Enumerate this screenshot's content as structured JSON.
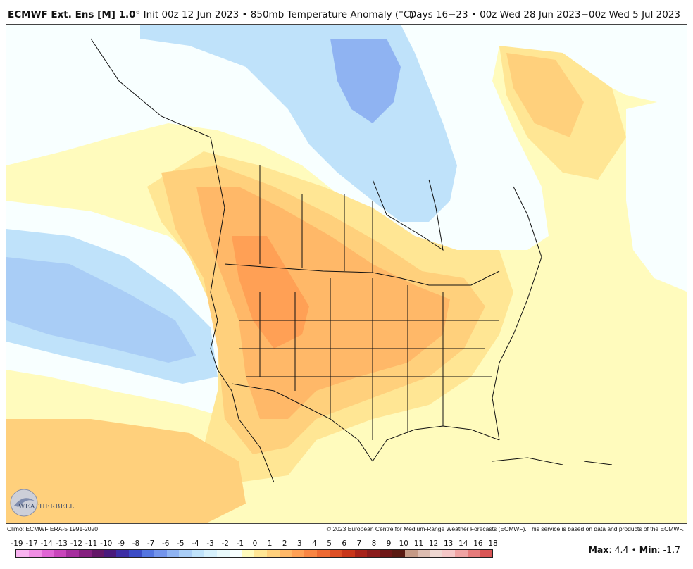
{
  "header": {
    "model": "ECMWF Ext.  Ens [M] 1.0°",
    "init": " Init 00z 12 Jun 2023 • 850mb Temperature Anomaly (°C)",
    "valid": "Days 16−23 • 00z Wed 28 Jun 2023−00z Wed 5 Jul 2023"
  },
  "footer": {
    "climo": "Climo: ECMWF ERA-5 1991-2020",
    "copyright": "© 2023 European Centre for Medium-Range Weather Forecasts (ECMWF). This service is based on data and products of the ECMWF."
  },
  "logo": {
    "text": "WEATHERBELL",
    "icon": "weatherbell-swirl-logo"
  },
  "stats": {
    "max_label": "Max",
    "max_value": "4.4",
    "sep": "•",
    "min_label": "Min",
    "min_value": "-1.7"
  },
  "legend": {
    "ticks": [
      "-19",
      "-17",
      "-14",
      "-13",
      "-12",
      "-11",
      "-10",
      "-9",
      "-8",
      "-7",
      "-6",
      "-5",
      "-4",
      "-3",
      "-2",
      "-1",
      "0",
      "1",
      "2",
      "3",
      "4",
      "5",
      "6",
      "7",
      "8",
      "9",
      "10",
      "11",
      "12",
      "13",
      "14",
      "16",
      "18"
    ],
    "colors": [
      "#f9b3f0",
      "#f08ee4",
      "#e065d4",
      "#c945bb",
      "#a62e9e",
      "#85207f",
      "#641768",
      "#4a1a7c",
      "#3d2ea5",
      "#3b4cc6",
      "#5475e0",
      "#7394eb",
      "#8fb3f2",
      "#a9cdf6",
      "#bfe2fa",
      "#d5f0fc",
      "#e8f9fb",
      "#f8ffff",
      "#fffbbd",
      "#ffe694",
      "#ffd07c",
      "#ffb868",
      "#ffa055",
      "#f98543",
      "#ee6a33",
      "#de4f25",
      "#c9361a",
      "#a8231a",
      "#8b1c1c",
      "#6f1717",
      "#5a1a12",
      "#c59a86",
      "#dcbcb0",
      "#efd8d2",
      "#f5c7c7",
      "#f0a3a3",
      "#e67b7b",
      "#d95555"
    ]
  },
  "map_colors": {
    "ocean_base": "#fffbbd",
    "anomaly_0_1": "#f8ffff",
    "anomaly_neg1_0": "#e8f9fb",
    "anomaly_neg2": "#bfe2fa",
    "anomaly_neg3": "#a9cdf6",
    "anomaly_neg4": "#8fb3f2",
    "anomaly_1_2": "#ffe694",
    "anomaly_2_3": "#ffd07c",
    "anomaly_3_4": "#ffb868",
    "anomaly_4_5": "#ffa055",
    "borders": "#111111"
  }
}
